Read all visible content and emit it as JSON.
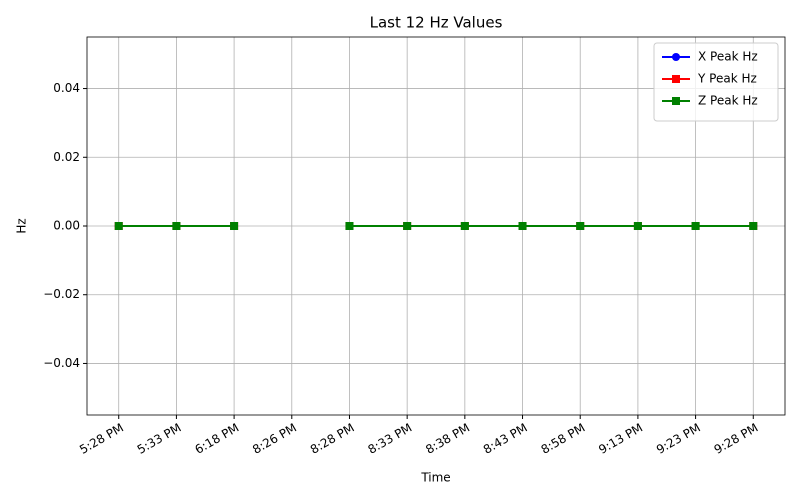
{
  "chart_data": {
    "type": "line",
    "title": "Last 12 Hz Values",
    "x_label": "Time",
    "y_label": "Hz",
    "categories": [
      "5:28 PM",
      "5:33 PM",
      "6:18 PM",
      "8:26 PM",
      "8:28 PM",
      "8:33 PM",
      "8:38 PM",
      "8:43 PM",
      "8:58 PM",
      "9:13 PM",
      "9:23 PM",
      "9:28 PM"
    ],
    "series": [
      {
        "name": "X Peak Hz",
        "color": "#0000ff",
        "marker": "circle",
        "values": [
          0,
          0,
          0,
          null,
          0,
          0,
          0,
          0,
          0,
          0,
          0,
          0
        ]
      },
      {
        "name": "Y Peak Hz",
        "color": "#ff0000",
        "marker": "square",
        "values": [
          0,
          0,
          0,
          null,
          0,
          0,
          0,
          0,
          0,
          0,
          0,
          0
        ]
      },
      {
        "name": "Z Peak Hz",
        "color": "#008000",
        "marker": "square",
        "values": [
          0,
          0,
          0,
          null,
          0,
          0,
          0,
          0,
          0,
          0,
          0,
          0
        ]
      }
    ],
    "ylim": [
      -0.055,
      0.055
    ],
    "yticks": [
      {
        "value": -0.04,
        "label": "−0.04"
      },
      {
        "value": -0.02,
        "label": "−0.02"
      },
      {
        "value": 0,
        "label": "0.00"
      },
      0.02,
      0.04
    ],
    "grid": true,
    "legend": "upper right"
  }
}
